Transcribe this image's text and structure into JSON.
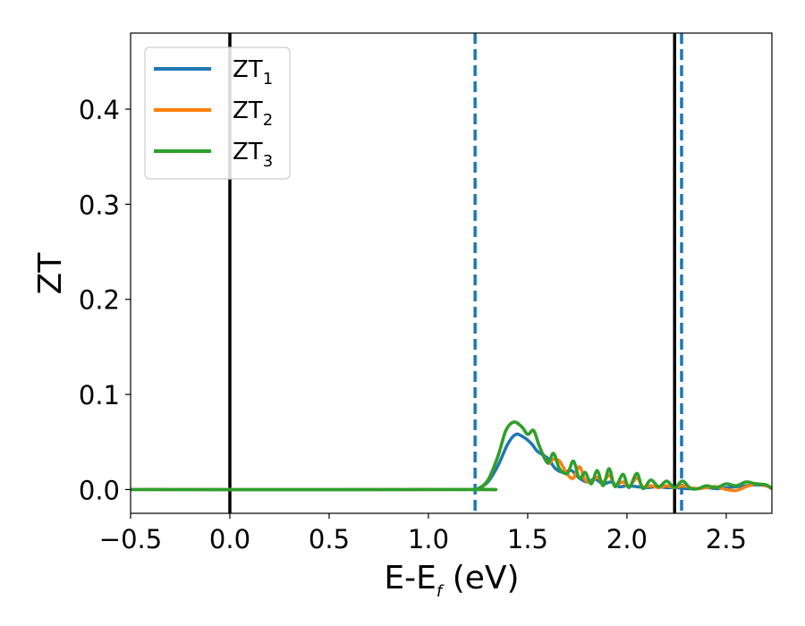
{
  "chart_data": {
    "type": "line",
    "xlabel": "E-E",
    "xlabel_sub": "f",
    "xlabel_unit": " (eV)",
    "ylabel": "ZT",
    "xlim": [
      -0.5,
      2.73
    ],
    "ylim": [
      -0.025,
      0.48
    ],
    "xticks": [
      -0.5,
      0.0,
      0.5,
      1.0,
      1.5,
      2.0,
      2.5
    ],
    "xtick_labels": [
      "−0.5",
      "0.0",
      "0.5",
      "1.0",
      "1.5",
      "2.0",
      "2.5"
    ],
    "yticks": [
      0.0,
      0.1,
      0.2,
      0.3,
      0.4
    ],
    "ytick_labels": [
      "0.0",
      "0.1",
      "0.2",
      "0.3",
      "0.4"
    ],
    "grid": false,
    "legend_position": "top-left",
    "vlines": [
      {
        "x": 0.0,
        "style": "solid",
        "color": "#000000"
      },
      {
        "x": 2.24,
        "style": "solid",
        "color": "#000000"
      },
      {
        "x": 1.235,
        "style": "dashed",
        "color": "#1f77b4"
      },
      {
        "x": 2.275,
        "style": "dashed",
        "color": "#1f77b4"
      }
    ],
    "series": [
      {
        "name": "ZT",
        "name_sub": "1",
        "color": "#1f77b4",
        "x": [
          -0.5,
          1.2,
          1.25,
          1.3,
          1.35,
          1.4,
          1.44,
          1.48,
          1.52,
          1.55,
          1.6,
          1.64,
          1.68,
          1.72,
          1.76,
          1.8,
          1.84,
          1.88,
          1.92,
          1.96,
          2.0,
          2.05,
          2.1,
          2.15,
          2.2,
          2.25,
          2.3,
          2.35,
          2.4,
          2.45,
          2.5,
          2.55,
          2.6,
          2.65,
          2.7,
          2.73
        ],
        "y": [
          0,
          0,
          0.001,
          0.008,
          0.025,
          0.048,
          0.058,
          0.055,
          0.048,
          0.04,
          0.033,
          0.022,
          0.018,
          0.02,
          0.012,
          0.008,
          0.011,
          0.006,
          0.008,
          0.003,
          0.004,
          0.003,
          0.002,
          0.003,
          0.002,
          0.002,
          0.001,
          0.001,
          0.002,
          0.001,
          0.002,
          0.003,
          0.004,
          0.005,
          0.004,
          0.001
        ]
      },
      {
        "name": "ZT",
        "name_sub": "2",
        "color": "#ff7f0e",
        "x": [
          -0.5,
          1.2,
          1.25,
          1.3,
          1.35,
          1.39,
          1.43,
          1.47,
          1.5,
          1.53,
          1.56,
          1.6,
          1.63,
          1.66,
          1.7,
          1.73,
          1.76,
          1.79,
          1.82,
          1.85,
          1.88,
          1.91,
          1.94,
          1.98,
          2.01,
          2.05,
          2.08,
          2.12,
          2.16,
          2.2,
          2.24,
          2.28,
          2.32,
          2.36,
          2.4,
          2.45,
          2.5,
          2.55,
          2.6,
          2.65,
          2.7,
          2.73
        ],
        "y": [
          0,
          0,
          0.001,
          0.01,
          0.035,
          0.062,
          0.071,
          0.066,
          0.058,
          0.062,
          0.045,
          0.028,
          0.032,
          0.03,
          0.016,
          0.012,
          0.024,
          0.01,
          0.008,
          0.013,
          0.008,
          0.015,
          0.005,
          0.008,
          0.003,
          0.012,
          0.003,
          0.004,
          0.002,
          0.004,
          0.002,
          0.004,
          0.002,
          0.001,
          0.002,
          0.003,
          0.0,
          -0.001,
          0.003,
          0.006,
          0.004,
          0.001
        ]
      },
      {
        "name": "ZT",
        "name_sub": "3",
        "color": "#2ca02c",
        "x": [
          -0.5,
          1.2,
          1.25,
          1.3,
          1.35,
          1.39,
          1.43,
          1.47,
          1.5,
          1.53,
          1.56,
          1.6,
          1.63,
          1.66,
          1.7,
          1.73,
          1.76,
          1.79,
          1.82,
          1.85,
          1.88,
          1.91,
          1.94,
          1.98,
          2.01,
          2.05,
          2.08,
          2.12,
          2.16,
          2.2,
          2.24,
          2.28,
          2.32,
          2.36,
          2.4,
          2.45,
          2.5,
          2.55,
          2.6,
          2.65,
          2.7,
          2.73
        ],
        "y": [
          0,
          0,
          0.001,
          0.01,
          0.035,
          0.062,
          0.071,
          0.066,
          0.058,
          0.062,
          0.045,
          0.028,
          0.038,
          0.022,
          0.017,
          0.03,
          0.012,
          0.018,
          0.006,
          0.02,
          0.004,
          0.022,
          0.003,
          0.016,
          0.002,
          0.017,
          0.001,
          0.01,
          0.003,
          0.009,
          0.002,
          0.009,
          0.001,
          0.001,
          0.004,
          0.002,
          0.006,
          0.004,
          0.008,
          0.006,
          0.005,
          0.001
        ]
      }
    ]
  }
}
